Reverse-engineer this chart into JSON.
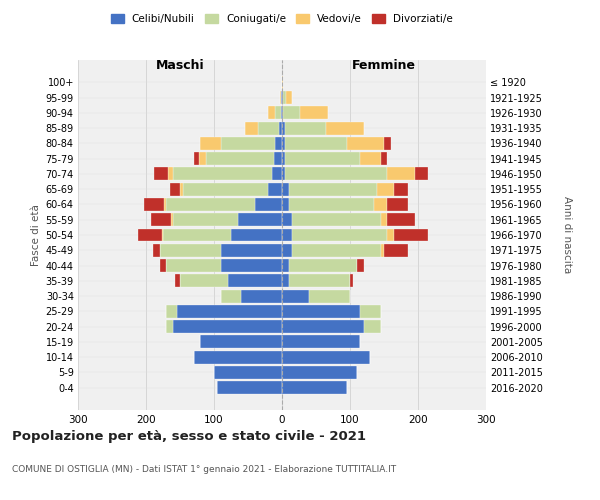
{
  "age_groups": [
    "0-4",
    "5-9",
    "10-14",
    "15-19",
    "20-24",
    "25-29",
    "30-34",
    "35-39",
    "40-44",
    "45-49",
    "50-54",
    "55-59",
    "60-64",
    "65-69",
    "70-74",
    "75-79",
    "80-84",
    "85-89",
    "90-94",
    "95-99",
    "100+"
  ],
  "birth_years": [
    "2016-2020",
    "2011-2015",
    "2006-2010",
    "2001-2005",
    "1996-2000",
    "1991-1995",
    "1986-1990",
    "1981-1985",
    "1976-1980",
    "1971-1975",
    "1966-1970",
    "1961-1965",
    "1956-1960",
    "1951-1955",
    "1946-1950",
    "1941-1945",
    "1936-1940",
    "1931-1935",
    "1926-1930",
    "1921-1925",
    "≤ 1920"
  ],
  "colors": {
    "celibe": "#4472C4",
    "coniugato": "#c5d9a0",
    "vedovo": "#f9c96e",
    "divorziato": "#c0302a"
  },
  "maschi": {
    "celibe": [
      95,
      100,
      130,
      120,
      160,
      155,
      60,
      80,
      90,
      90,
      75,
      65,
      40,
      20,
      15,
      12,
      10,
      5,
      2,
      1,
      0
    ],
    "coniugato": [
      0,
      0,
      0,
      0,
      10,
      15,
      30,
      70,
      80,
      90,
      100,
      95,
      130,
      125,
      145,
      100,
      80,
      30,
      8,
      1,
      0
    ],
    "vedovo": [
      0,
      0,
      0,
      0,
      0,
      0,
      0,
      0,
      0,
      0,
      2,
      3,
      3,
      5,
      8,
      10,
      30,
      20,
      10,
      1,
      0
    ],
    "divorziato": [
      0,
      0,
      0,
      0,
      0,
      0,
      0,
      8,
      10,
      10,
      35,
      30,
      30,
      15,
      20,
      8,
      0,
      0,
      0,
      0,
      0
    ]
  },
  "femmine": {
    "nubile": [
      95,
      110,
      130,
      115,
      120,
      115,
      40,
      10,
      10,
      15,
      15,
      15,
      10,
      10,
      5,
      5,
      5,
      5,
      2,
      1,
      0
    ],
    "coniugata": [
      0,
      0,
      0,
      0,
      25,
      30,
      60,
      90,
      100,
      130,
      140,
      130,
      125,
      130,
      150,
      110,
      90,
      60,
      25,
      5,
      0
    ],
    "vedova": [
      0,
      0,
      0,
      0,
      0,
      0,
      0,
      0,
      0,
      5,
      10,
      10,
      20,
      25,
      40,
      30,
      55,
      55,
      40,
      8,
      1
    ],
    "divorziata": [
      0,
      0,
      0,
      0,
      0,
      0,
      0,
      5,
      10,
      35,
      50,
      40,
      30,
      20,
      20,
      10,
      10,
      0,
      0,
      0,
      0
    ]
  },
  "xlim": 300,
  "title": "Popolazione per età, sesso e stato civile - 2021",
  "subtitle": "COMUNE DI OSTIGLIA (MN) - Dati ISTAT 1° gennaio 2021 - Elaborazione TUTTITALIA.IT",
  "ylabel_left": "Fasce di età",
  "ylabel_right": "Anni di nascita",
  "xlabel_left": "Maschi",
  "xlabel_right": "Femmine",
  "legend_labels": [
    "Celibi/Nubili",
    "Coniugati/e",
    "Vedovi/e",
    "Divorziati/e"
  ],
  "bg_color": "#ffffff",
  "plot_bg": "#f0f0f0",
  "grid_color": "#cccccc",
  "bar_height": 0.85
}
